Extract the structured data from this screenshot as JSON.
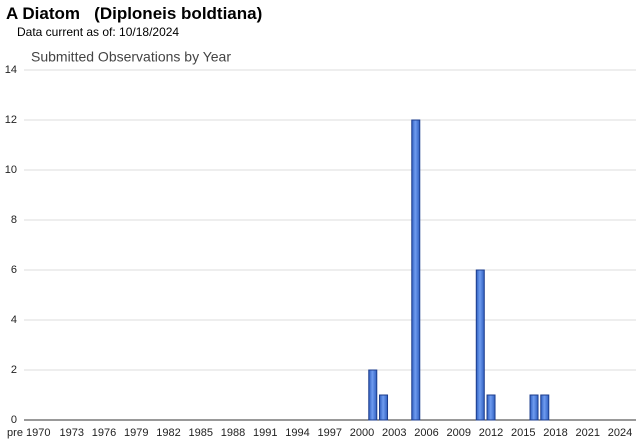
{
  "header": {
    "title": "A Diatom   (Diploneis boldtiana)",
    "subtitle": "Data current as of: 10/18/2024"
  },
  "chart_data": {
    "type": "bar",
    "title": "Submitted Observations by Year",
    "categories": [
      "pre 1970",
      null,
      null,
      null,
      "1973",
      null,
      null,
      "1976",
      null,
      null,
      "1979",
      null,
      null,
      "1982",
      null,
      null,
      "1985",
      null,
      null,
      "1988",
      null,
      null,
      "1991",
      null,
      null,
      "1994",
      null,
      null,
      "1997",
      null,
      null,
      "2000",
      null,
      null,
      "2003",
      null,
      null,
      "2006",
      null,
      null,
      "2009",
      null,
      null,
      "2012",
      null,
      null,
      "2015",
      null,
      null,
      "2018",
      null,
      null,
      "2021",
      null,
      null,
      "2024"
    ],
    "values": [
      0,
      0,
      0,
      0,
      0,
      0,
      0,
      0,
      0,
      0,
      0,
      0,
      0,
      0,
      0,
      0,
      0,
      0,
      0,
      0,
      0,
      0,
      0,
      0,
      0,
      0,
      0,
      0,
      0,
      0,
      0,
      0,
      2,
      1,
      0,
      0,
      12,
      0,
      0,
      0,
      0,
      0,
      6,
      1,
      0,
      0,
      0,
      1,
      1,
      0,
      0,
      0,
      0,
      0,
      0,
      0
    ],
    "color": "#4a7fdc",
    "ylim": [
      0,
      14
    ],
    "yticks": [
      0,
      2,
      4,
      6,
      8,
      10,
      12,
      14
    ],
    "grid": true
  }
}
